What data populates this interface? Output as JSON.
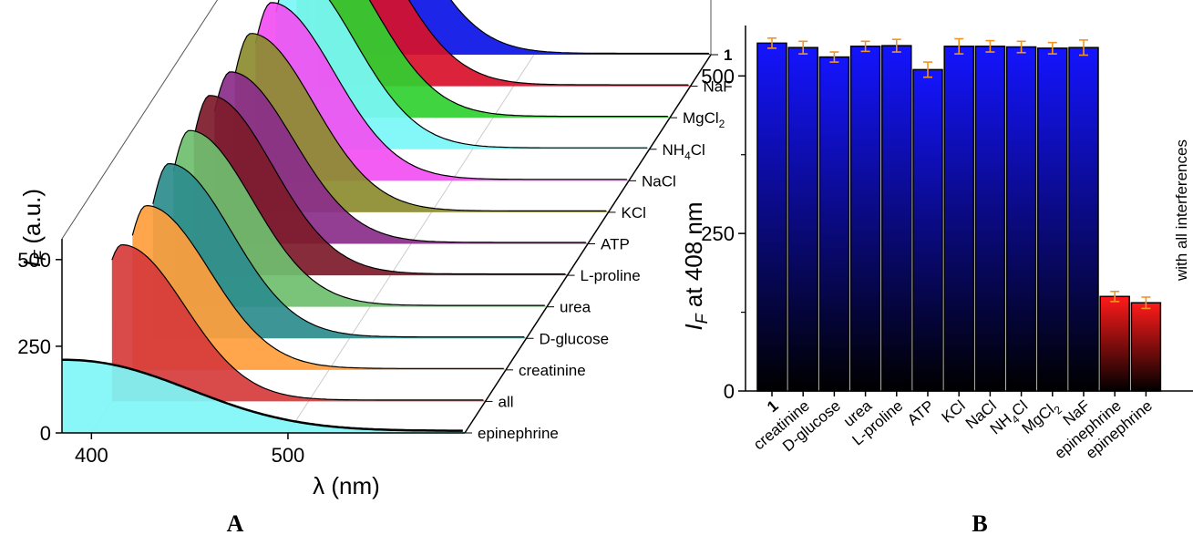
{
  "chart_data": [
    {
      "panel": "A",
      "type": "line",
      "subtype": "3d-waterfall-area",
      "xlabel_symbol": "λ",
      "xlabel_unit": "(nm)",
      "ylabel_symbol": "I",
      "ylabel_subscript": "F",
      "ylabel_unit": "(a.u.)",
      "x_ticks": [
        "400",
        "500"
      ],
      "y_ticks": [
        "0",
        "250",
        "500"
      ],
      "xlim": [
        385,
        590
      ],
      "ylim": [
        0,
        560
      ],
      "series": [
        {
          "label": "epinephrine",
          "color": "#7ff6f6",
          "peak_x": 385,
          "peak_y": 205,
          "shape": "decay"
        },
        {
          "label": "all",
          "color": "#d63b3b",
          "peak_x": 405,
          "peak_y": 448,
          "shape": "peak"
        },
        {
          "label": "creatinine",
          "color": "#ff9e3d",
          "peak_x": 407,
          "peak_y": 470,
          "shape": "peak"
        },
        {
          "label": "D-glucose",
          "color": "#2c8c8c",
          "peak_x": 408,
          "peak_y": 500,
          "shape": "peak"
        },
        {
          "label": "urea",
          "color": "#6fbf6f",
          "peak_x": 408,
          "peak_y": 505,
          "shape": "peak"
        },
        {
          "label": "L-proline",
          "color": "#7d1a2a",
          "peak_x": 408,
          "peak_y": 515,
          "shape": "peak"
        },
        {
          "label": "ATP",
          "color": "#8a2d8a",
          "peak_x": 408,
          "peak_y": 492,
          "shape": "peak"
        },
        {
          "label": "KCl",
          "color": "#8c8c30",
          "peak_x": 408,
          "peak_y": 512,
          "shape": "peak"
        },
        {
          "label": "NaCl",
          "color": "#f24ff2",
          "peak_x": 408,
          "peak_y": 510,
          "shape": "peak"
        },
        {
          "label": "NH",
          "label_sub": "4",
          "label_tail": "Cl",
          "color": "#7af7f7",
          "peak_x": 408,
          "peak_y": 510,
          "shape": "peak"
        },
        {
          "label": "MgCl",
          "label_sub": "2",
          "label_tail": "",
          "color": "#30d030",
          "peak_x": 408,
          "peak_y": 508,
          "shape": "peak"
        },
        {
          "label": "NaF",
          "color": "#d8102a",
          "peak_x": 408,
          "peak_y": 510,
          "shape": "peak"
        },
        {
          "label": "1",
          "label_bold": true,
          "color": "#0a14e6",
          "peak_x": 408,
          "peak_y": 515,
          "shape": "peak"
        }
      ],
      "panel_label": "A"
    },
    {
      "panel": "B",
      "type": "bar",
      "ylabel_symbol": "I",
      "ylabel_subscript": "F",
      "ylabel_tail": " at 408 nm",
      "ylim": [
        0,
        580
      ],
      "y_ticks": [
        0,
        250,
        500
      ],
      "error_color": "#f29422",
      "categories": [
        {
          "text": "1",
          "bold": true
        },
        {
          "text": "creatinine"
        },
        {
          "text": "D-glucose"
        },
        {
          "text": "urea"
        },
        {
          "text": "L-proline"
        },
        {
          "text": "ATP"
        },
        {
          "text": "KCl"
        },
        {
          "text": "NaCl"
        },
        {
          "text": "NH",
          "sub": "4",
          "tail": "Cl"
        },
        {
          "text": "MgCl",
          "sub": "2",
          "tail": ""
        },
        {
          "text": "NaF"
        },
        {
          "text": "epinephrine"
        },
        {
          "text": "epinephrine"
        }
      ],
      "values": [
        552,
        545,
        530,
        547,
        548,
        510,
        547,
        547,
        546,
        544,
        545,
        150,
        140
      ],
      "errors": [
        8,
        10,
        8,
        8,
        10,
        12,
        12,
        9,
        9,
        9,
        12,
        8,
        9
      ],
      "bar_colors": [
        "blue",
        "blue",
        "blue",
        "blue",
        "blue",
        "blue",
        "blue",
        "blue",
        "blue",
        "blue",
        "blue",
        "red",
        "red"
      ],
      "annotation": "with all interferences",
      "panel_label": "B"
    }
  ]
}
